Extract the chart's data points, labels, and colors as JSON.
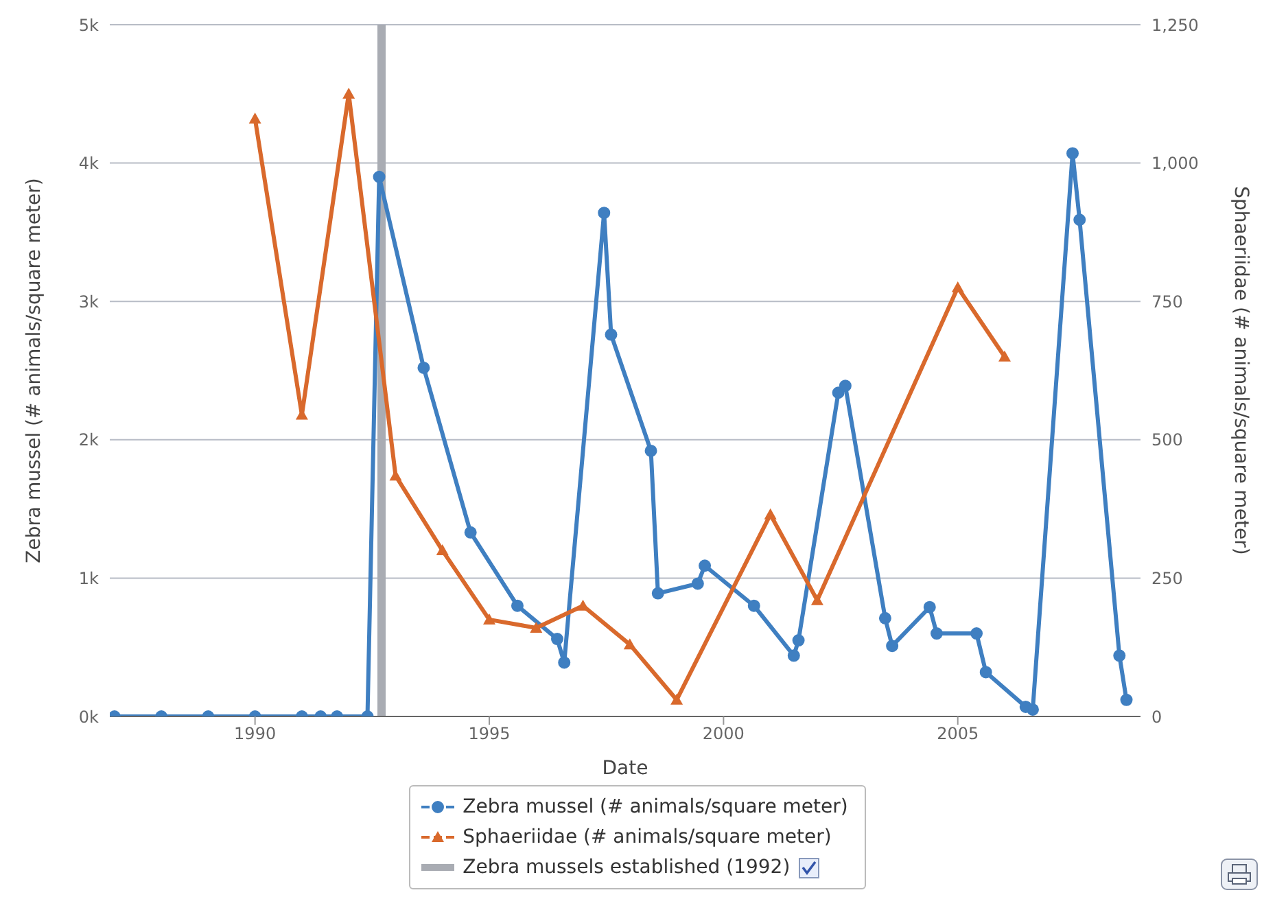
{
  "chart_data": {
    "type": "line",
    "xlabel": "Date",
    "ylabel": "Zebra mussel (# animals/square meter)",
    "y2label": "Sphaeriidae (# animals/square meter)",
    "xlim": [
      1986.9,
      2008.9
    ],
    "xticks": [
      1990,
      1995,
      2000,
      2005
    ],
    "ylim": [
      0,
      5000
    ],
    "yticks": [
      {
        "value": 0,
        "label": "0k"
      },
      {
        "value": 1000,
        "label": "1k"
      },
      {
        "value": 2000,
        "label": "2k"
      },
      {
        "value": 3000,
        "label": "3k"
      },
      {
        "value": 4000,
        "label": "4k"
      },
      {
        "value": 5000,
        "label": "5k"
      }
    ],
    "y2lim": [
      0,
      1250
    ],
    "y2ticks": [
      0,
      250,
      500,
      750,
      {
        "value": 1000,
        "label": "1,000"
      },
      {
        "value": 1250,
        "label": "1,250"
      }
    ],
    "grid": "y",
    "legend": "bottom",
    "series": [
      {
        "name": "Zebra mussel (# animals/square meter)",
        "color": "#3f7fc1",
        "marker": "circle",
        "x": [
          1987.0,
          1988.0,
          1989.0,
          1990.0,
          1991.0,
          1991.4,
          1991.75,
          1992.4,
          1992.65,
          1993.6,
          1994.6,
          1995.6,
          1996.45,
          1996.6,
          1997.45,
          1997.6,
          1998.45,
          1998.6,
          1999.45,
          1999.6,
          2000.65,
          2001.5,
          2001.6,
          2002.45,
          2002.6,
          2003.45,
          2003.6,
          2004.4,
          2004.55,
          2005.4,
          2005.6,
          2006.45,
          2006.6,
          2007.45,
          2007.6,
          2008.45,
          2008.6
        ],
        "values": [
          0,
          0,
          0,
          0,
          0,
          0,
          0,
          0,
          3900,
          2520,
          1330,
          800,
          560,
          390,
          3640,
          2760,
          1920,
          890,
          960,
          1090,
          800,
          440,
          550,
          2340,
          2390,
          710,
          510,
          790,
          600,
          600,
          320,
          70,
          50,
          4070,
          3590,
          440,
          120
        ]
      },
      {
        "name": "Sphaeriidae (# animals/square meter)",
        "color": "#d9692c",
        "marker": "triangle",
        "axis": "y2",
        "x": [
          1990,
          1991,
          1992,
          1993,
          1994,
          1995,
          1996,
          1997,
          1998,
          1999,
          2001,
          2002,
          2005,
          2006
        ],
        "values": [
          1080,
          545,
          1125,
          435,
          300,
          175,
          160,
          200,
          130,
          30,
          365,
          210,
          775,
          650
        ]
      }
    ],
    "ref_lines": [
      {
        "axis": "x",
        "value": 1992.7,
        "label": "Zebra mussels established (1992)",
        "color": "#a9acb3"
      }
    ]
  }
}
